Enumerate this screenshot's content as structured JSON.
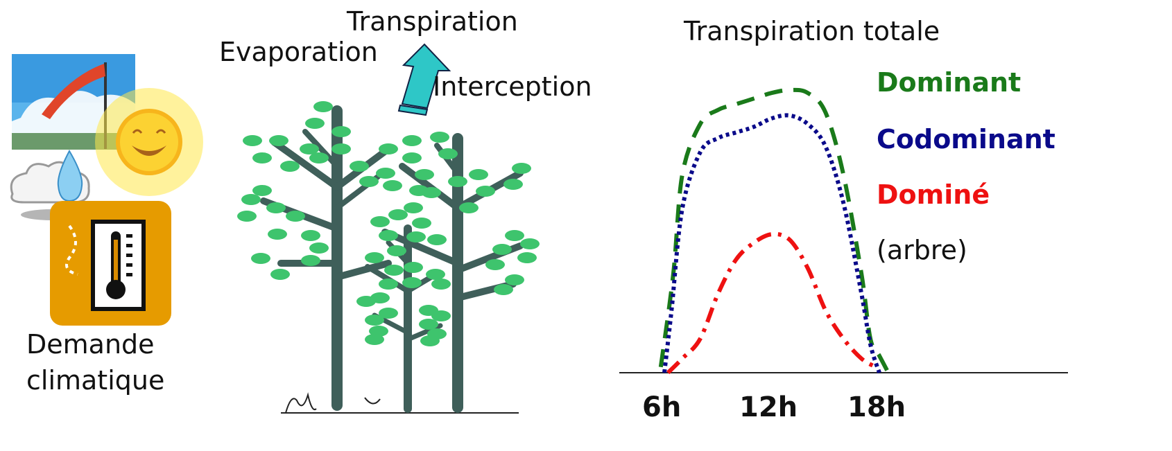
{
  "climate": {
    "label_line1": "Demande",
    "label_line2": "climatique"
  },
  "tree": {
    "transpiration_label": "Transpiration",
    "evaporation_label": "Evaporation",
    "interception_label": "Interception"
  },
  "chart_data": {
    "type": "line",
    "title": "Transpiration totale",
    "xlabel": "",
    "ylabel": "",
    "x_ticks": [
      "6h",
      "12h",
      "18h"
    ],
    "legend_note": "(arbre)",
    "series": [
      {
        "name": "Dominant",
        "color": "#1a7a1a",
        "dash": "dashed",
        "x": [
          5.8,
          6.5,
          7,
          8,
          9,
          10,
          11,
          12,
          13,
          14,
          15,
          16,
          17,
          17.5,
          18,
          18.5
        ],
        "y": [
          0.02,
          0.35,
          0.7,
          0.88,
          0.93,
          0.95,
          0.97,
          0.99,
          1.0,
          0.99,
          0.92,
          0.7,
          0.35,
          0.12,
          0.06,
          0.0
        ]
      },
      {
        "name": "Codominant",
        "color": "#0a0a8a",
        "dash": "dotted",
        "x": [
          6,
          6.4,
          7,
          8,
          9,
          10,
          11,
          12,
          13,
          14,
          15,
          16,
          17,
          17.5,
          18
        ],
        "y": [
          0.0,
          0.22,
          0.58,
          0.78,
          0.83,
          0.85,
          0.87,
          0.9,
          0.91,
          0.88,
          0.8,
          0.6,
          0.28,
          0.1,
          0.0
        ]
      },
      {
        "name": "Dominé",
        "color": "#ee1111",
        "dash": "dashdot",
        "x": [
          6.2,
          7,
          8,
          9,
          10,
          11,
          12,
          13,
          14,
          15,
          16,
          17,
          17.8
        ],
        "y": [
          0.0,
          0.05,
          0.12,
          0.28,
          0.4,
          0.46,
          0.49,
          0.47,
          0.37,
          0.22,
          0.12,
          0.05,
          0.02
        ]
      }
    ],
    "legend_placement": "right"
  }
}
